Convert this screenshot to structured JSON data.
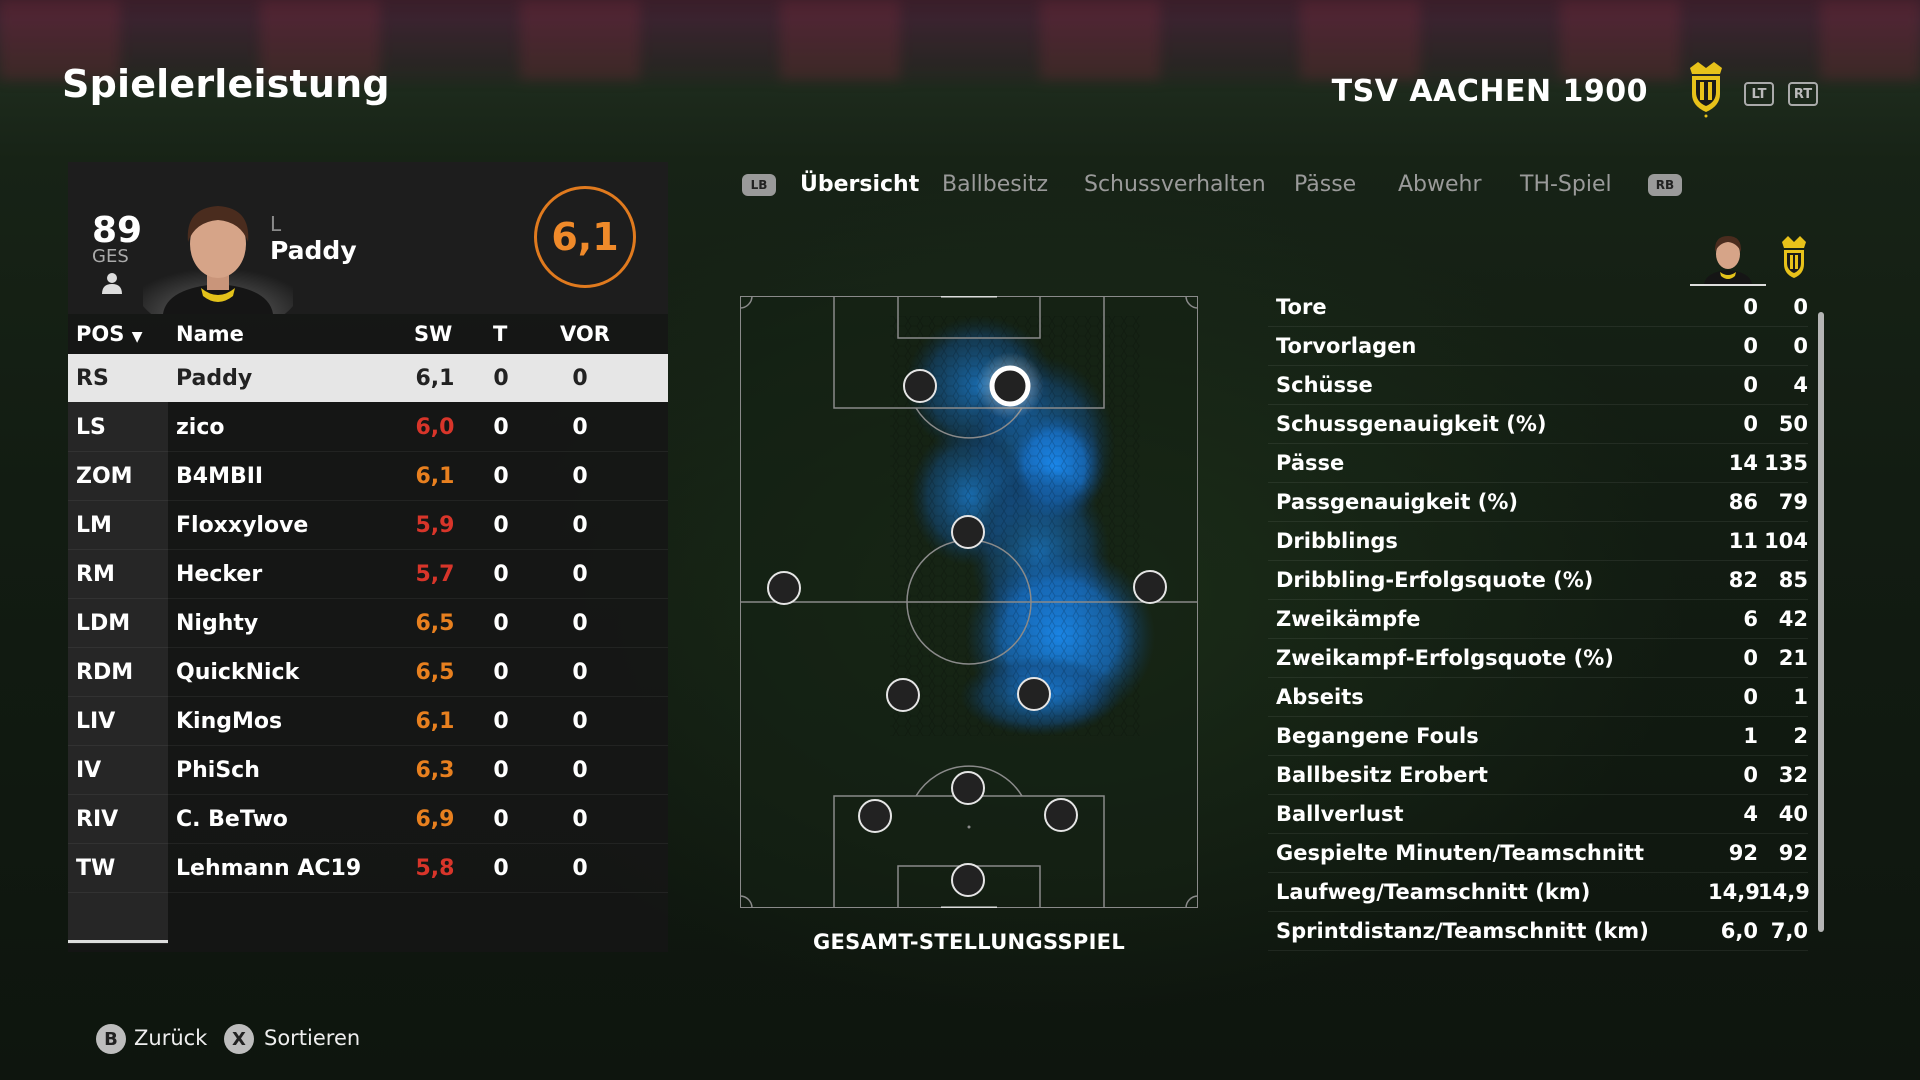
{
  "page": {
    "title": "Spielerleistung"
  },
  "club": {
    "name": "TSV AACHEN 1900",
    "lt_label": "LT",
    "rt_label": "RT"
  },
  "player_card": {
    "overall": "89",
    "overall_label": "GES",
    "foot": "L",
    "name": "Paddy",
    "rating": "6,1",
    "rating_color": "#e07a1e"
  },
  "table": {
    "headers": {
      "pos": "POS",
      "name": "Name",
      "sw": "SW",
      "t": "T",
      "vor": "VOR"
    },
    "sort_indicator": "▼",
    "rows": [
      {
        "pos": "RS",
        "name": "Paddy",
        "sw": "6,1",
        "t": "0",
        "vor": "0",
        "sw_tone": "dark",
        "selected": true
      },
      {
        "pos": "LS",
        "name": "zico",
        "sw": "6,0",
        "t": "0",
        "vor": "0",
        "sw_tone": "red"
      },
      {
        "pos": "ZOM",
        "name": "B4MBII",
        "sw": "6,1",
        "t": "0",
        "vor": "0",
        "sw_tone": "orange"
      },
      {
        "pos": "LM",
        "name": "Floxxylove",
        "sw": "5,9",
        "t": "0",
        "vor": "0",
        "sw_tone": "red"
      },
      {
        "pos": "RM",
        "name": "Hecker",
        "sw": "5,7",
        "t": "0",
        "vor": "0",
        "sw_tone": "red"
      },
      {
        "pos": "LDM",
        "name": "Nighty",
        "sw": "6,5",
        "t": "0",
        "vor": "0",
        "sw_tone": "orange"
      },
      {
        "pos": "RDM",
        "name": "QuickNick",
        "sw": "6,5",
        "t": "0",
        "vor": "0",
        "sw_tone": "orange"
      },
      {
        "pos": "LIV",
        "name": "KingMos",
        "sw": "6,1",
        "t": "0",
        "vor": "0",
        "sw_tone": "orange"
      },
      {
        "pos": "IV",
        "name": "PhiSch",
        "sw": "6,3",
        "t": "0",
        "vor": "0",
        "sw_tone": "orange"
      },
      {
        "pos": "RIV",
        "name": "C. BeTwo",
        "sw": "6,9",
        "t": "0",
        "vor": "0",
        "sw_tone": "orange"
      },
      {
        "pos": "TW",
        "name": "Lehmann AC19",
        "sw": "5,8",
        "t": "0",
        "vor": "0",
        "sw_tone": "red"
      }
    ]
  },
  "tabs": {
    "lb_label": "LB",
    "rb_label": "RB",
    "items": [
      "Übersicht",
      "Ballbesitz",
      "Schussverhalten",
      "Pässe",
      "Abwehr",
      "TH-Spiel"
    ],
    "active": "Übersicht"
  },
  "pitch": {
    "caption": "GESAMT-STELLUNGSSPIEL",
    "heatmap_color": "#1a7fe0"
  },
  "stats": {
    "rows": [
      {
        "label": "Tore",
        "player": "0",
        "team": "0"
      },
      {
        "label": "Torvorlagen",
        "player": "0",
        "team": "0"
      },
      {
        "label": "Schüsse",
        "player": "0",
        "team": "4"
      },
      {
        "label": "Schussgenauigkeit (%)",
        "player": "0",
        "team": "50"
      },
      {
        "label": "Pässe",
        "player": "14",
        "team": "135"
      },
      {
        "label": "Passgenauigkeit (%)",
        "player": "86",
        "team": "79"
      },
      {
        "label": "Dribblings",
        "player": "11",
        "team": "104"
      },
      {
        "label": "Dribbling-Erfolgsquote (%)",
        "player": "82",
        "team": "85"
      },
      {
        "label": "Zweikämpfe",
        "player": "6",
        "team": "42"
      },
      {
        "label": "Zweikampf-Erfolgsquote (%)",
        "player": "0",
        "team": "21"
      },
      {
        "label": "Abseits",
        "player": "0",
        "team": "1"
      },
      {
        "label": "Begangene Fouls",
        "player": "1",
        "team": "2"
      },
      {
        "label": "Ballbesitz Erobert",
        "player": "0",
        "team": "32"
      },
      {
        "label": "Ballverlust",
        "player": "4",
        "team": "40"
      },
      {
        "label": "Gespielte Minuten/Teamschnitt",
        "player": "92",
        "team": "92"
      },
      {
        "label": "Laufweg/Teamschnitt (km)",
        "player": "14,9",
        "team": "14,9"
      },
      {
        "label": "Sprintdistanz/Teamschnitt (km)",
        "player": "6,0",
        "team": "7,0"
      }
    ]
  },
  "footer": {
    "back_button": "B",
    "back_label": "Zurück",
    "sort_button": "X",
    "sort_label": "Sortieren"
  }
}
